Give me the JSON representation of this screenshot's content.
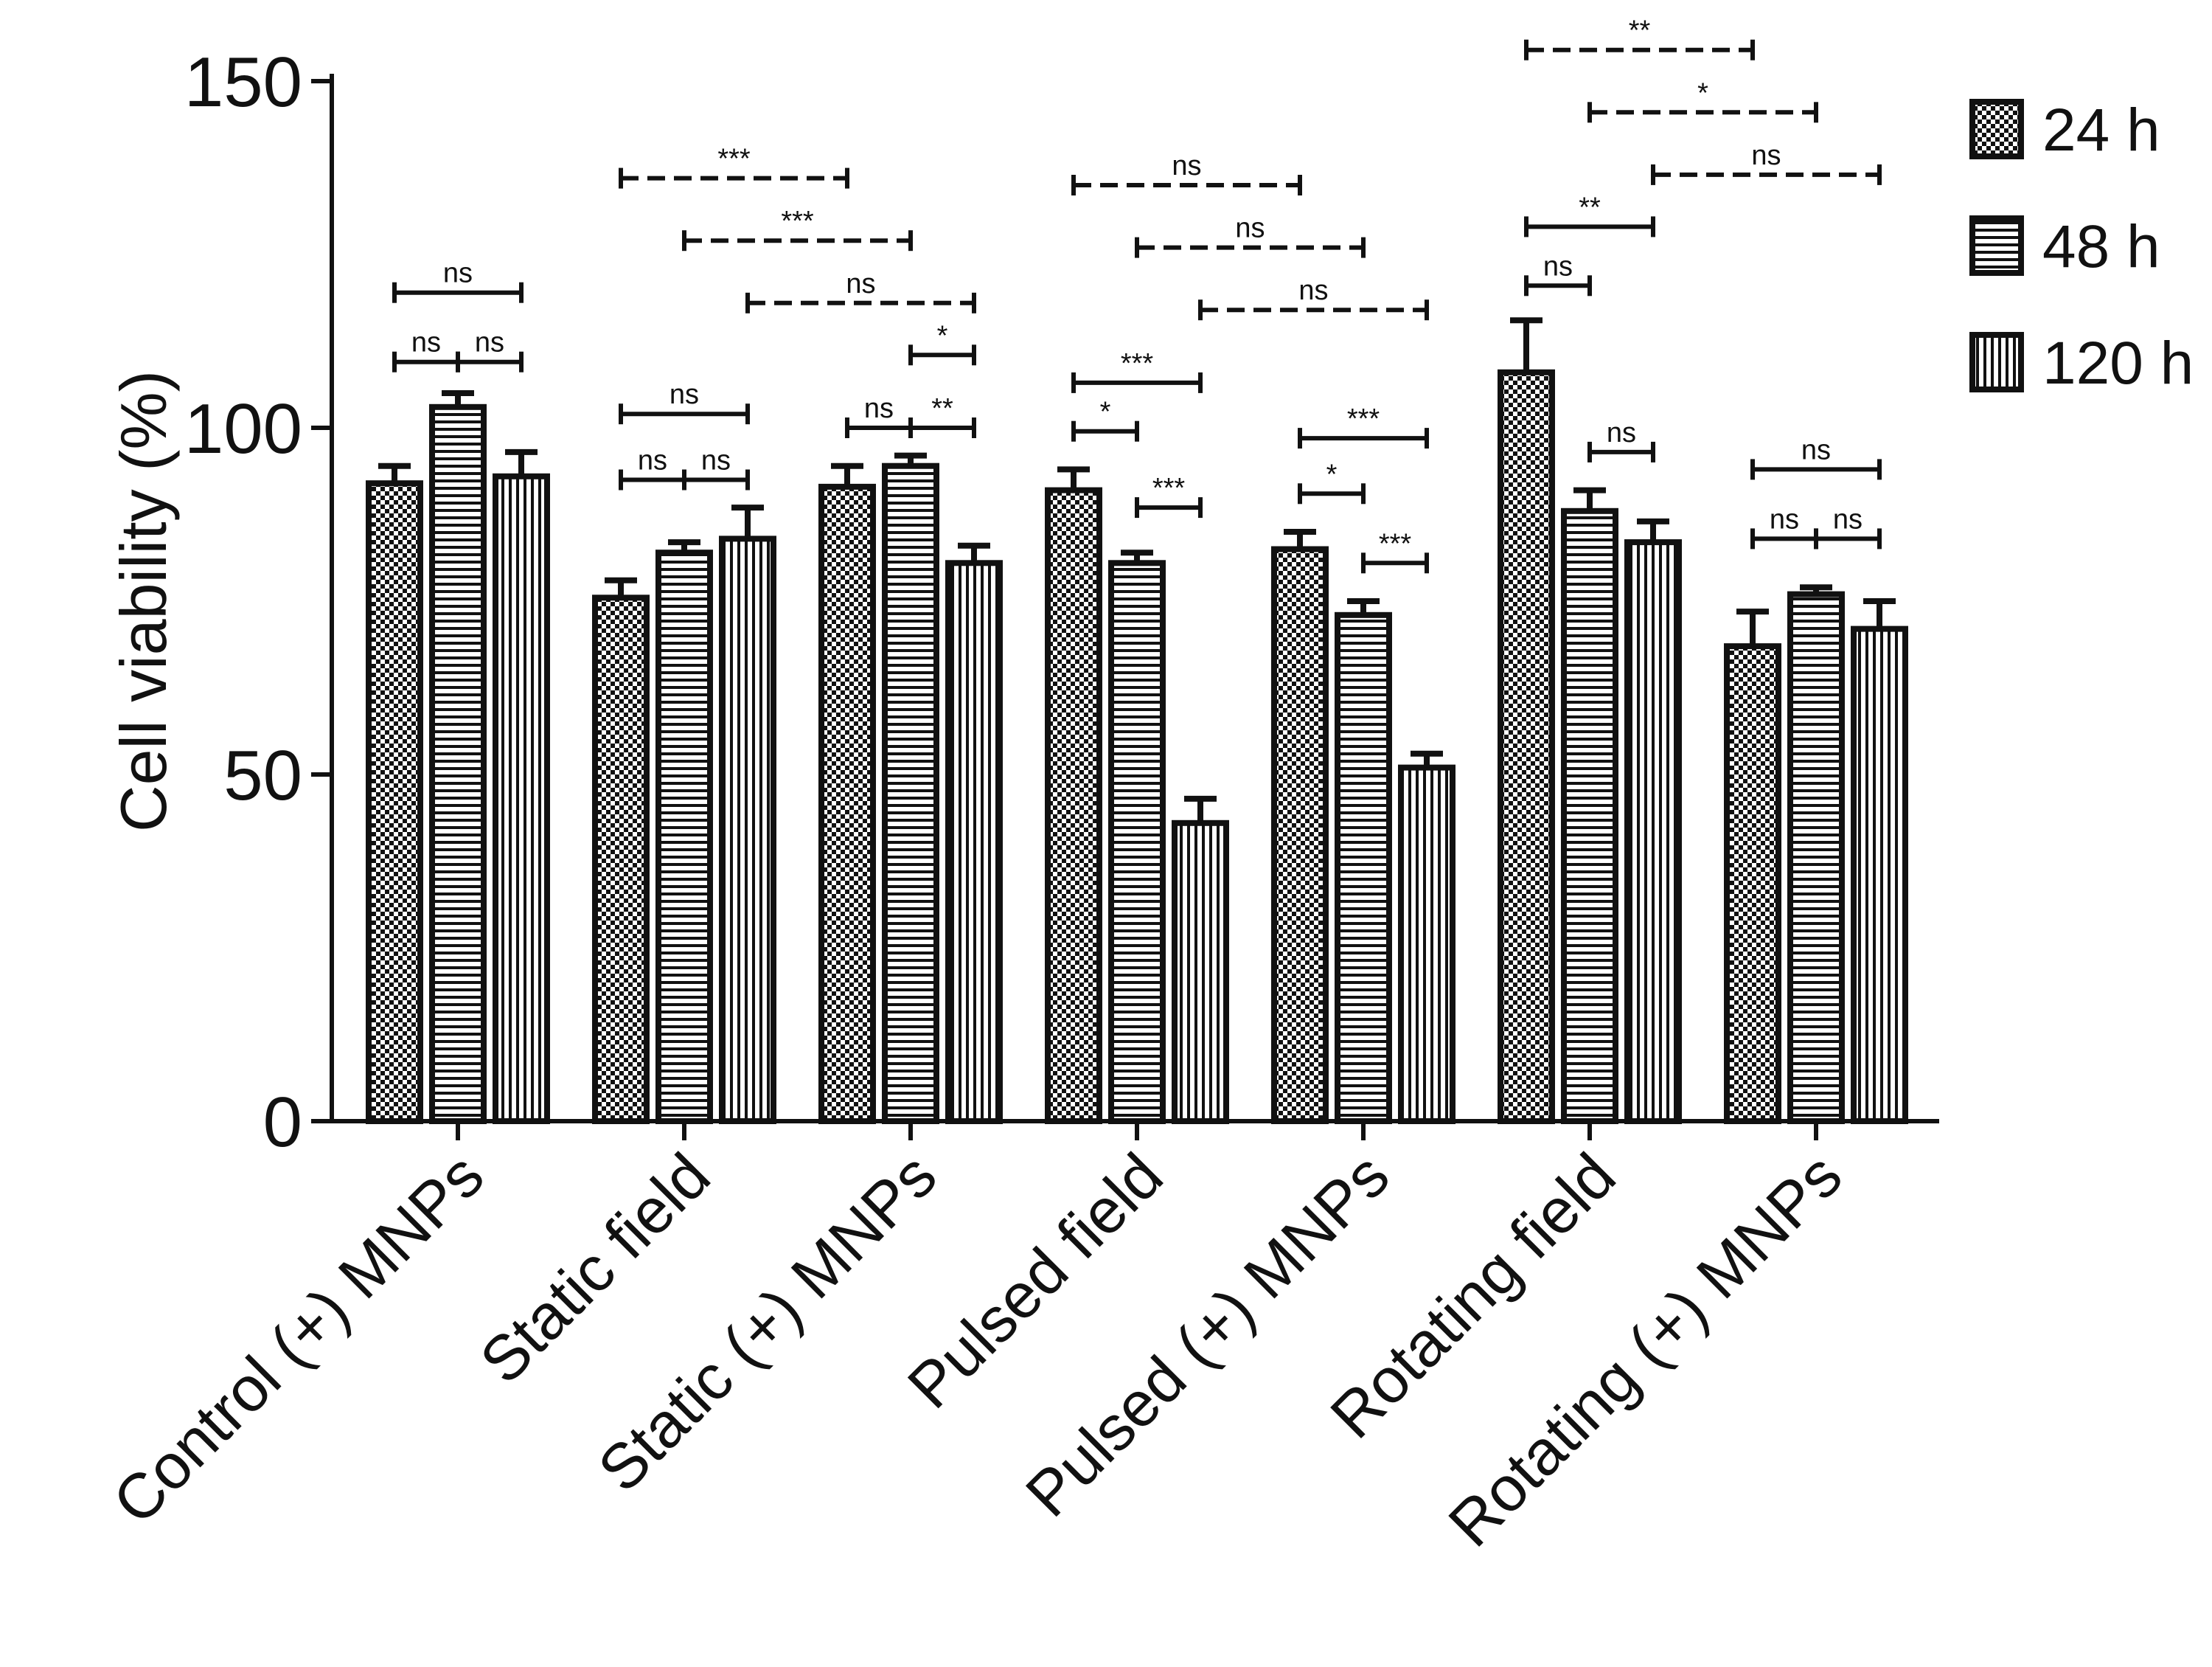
{
  "chart_data": {
    "type": "bar",
    "title": "",
    "xlabel": "",
    "ylabel": "Cell viability (%)",
    "ylim": [
      0,
      150
    ],
    "yticks": [
      0,
      50,
      100,
      150
    ],
    "grid": false,
    "legend_position": "top-right",
    "categories": [
      "Control (+) MNPs",
      "Static field",
      "Static (+) MNPs",
      "Pulsed field",
      "Pulsed (+) MNPs",
      "Rotating field",
      "Rotating (+) MNPs"
    ],
    "series": [
      {
        "name": "24 h",
        "pattern": "checker",
        "values": [
          92,
          75.5,
          91.5,
          91,
          82.5,
          108,
          68.5
        ],
        "errors": [
          2.5,
          2.5,
          3,
          3,
          2.5,
          7.5,
          5
        ]
      },
      {
        "name": "48 h",
        "pattern": "horizontal",
        "values": [
          103,
          82,
          94.5,
          80.5,
          73,
          88,
          76
        ],
        "errors": [
          2,
          1.5,
          1.5,
          1.5,
          2,
          3,
          1
        ]
      },
      {
        "name": "120 h",
        "pattern": "vertical",
        "values": [
          93,
          84,
          80.5,
          43,
          51,
          83.5,
          71
        ],
        "errors": [
          3.5,
          4.5,
          2.5,
          3.5,
          2,
          3,
          4
        ]
      }
    ],
    "annotations": [
      {
        "group": 0,
        "from": 0,
        "to": 1,
        "level": 109.5,
        "style": "solid",
        "label": "ns"
      },
      {
        "group": 0,
        "from": 1,
        "to": 2,
        "level": 109.5,
        "style": "solid",
        "label": "ns"
      },
      {
        "group": 0,
        "from": 0,
        "to": 2,
        "level": 119.5,
        "style": "solid",
        "label": "ns"
      },
      {
        "group": 1,
        "from": 0,
        "to": 1,
        "level": 92.5,
        "style": "solid",
        "label": "ns"
      },
      {
        "group": 1,
        "from": 1,
        "to": 2,
        "level": 92.5,
        "style": "solid",
        "label": "ns"
      },
      {
        "group": 1,
        "from": 0,
        "to": 2,
        "level": 102,
        "style": "solid",
        "label": "ns"
      },
      {
        "group": 2,
        "from": 0,
        "to": 1,
        "level": 100,
        "style": "solid",
        "label": "ns"
      },
      {
        "group": 2,
        "from": 1,
        "to": 2,
        "level": 100,
        "style": "solid",
        "label": "**"
      },
      {
        "group": 2,
        "from": 1,
        "to": 2,
        "level": 110.5,
        "style": "solid",
        "label": "*"
      },
      {
        "group": 3,
        "from": 0,
        "to": 1,
        "level": 99.5,
        "style": "solid",
        "label": "*"
      },
      {
        "group": 3,
        "from": 1,
        "to": 2,
        "level": 88.5,
        "style": "solid",
        "label": "***"
      },
      {
        "group": 3,
        "from": 0,
        "to": 2,
        "level": 106.5,
        "style": "solid",
        "label": "***"
      },
      {
        "group": 4,
        "from": 0,
        "to": 1,
        "level": 90.5,
        "style": "solid",
        "label": "*"
      },
      {
        "group": 4,
        "from": 1,
        "to": 2,
        "level": 80.5,
        "style": "solid",
        "label": "***"
      },
      {
        "group": 4,
        "from": 0,
        "to": 2,
        "level": 98.5,
        "style": "solid",
        "label": "***"
      },
      {
        "group": 5,
        "from": 0,
        "to": 1,
        "level": 120.5,
        "style": "solid",
        "label": "ns"
      },
      {
        "group": 5,
        "from": 1,
        "to": 2,
        "level": 96.5,
        "style": "solid",
        "label": "ns"
      },
      {
        "group": 6,
        "from": 0,
        "to": 1,
        "level": 84,
        "style": "solid",
        "label": "ns"
      },
      {
        "group": 6,
        "from": 1,
        "to": 2,
        "level": 84,
        "style": "solid",
        "label": "ns"
      },
      {
        "group": 6,
        "from": 0,
        "to": 2,
        "level": 94,
        "style": "solid",
        "label": "ns"
      },
      {
        "between": [
          [
            1,
            0
          ],
          [
            2,
            0
          ]
        ],
        "level": 136,
        "style": "dashed",
        "label": "***"
      },
      {
        "between": [
          [
            1,
            1
          ],
          [
            2,
            1
          ]
        ],
        "level": 127,
        "style": "dashed",
        "label": "***"
      },
      {
        "between": [
          [
            1,
            2
          ],
          [
            2,
            2
          ]
        ],
        "level": 118,
        "style": "dashed",
        "label": "ns"
      },
      {
        "between": [
          [
            3,
            0
          ],
          [
            4,
            0
          ]
        ],
        "level": 135,
        "style": "dashed",
        "label": "ns"
      },
      {
        "between": [
          [
            3,
            1
          ],
          [
            4,
            1
          ]
        ],
        "level": 126,
        "style": "dashed",
        "label": "ns"
      },
      {
        "between": [
          [
            3,
            2
          ],
          [
            4,
            2
          ]
        ],
        "level": 117,
        "style": "dashed",
        "label": "ns"
      },
      {
        "between": [
          [
            5,
            0
          ],
          [
            5,
            2
          ]
        ],
        "level": 129,
        "style": "solid",
        "label": "**"
      },
      {
        "between": [
          [
            5,
            0
          ],
          [
            6,
            0
          ]
        ],
        "level": 154.5,
        "style": "dashed",
        "label": "**"
      },
      {
        "between": [
          [
            5,
            1
          ],
          [
            6,
            1
          ]
        ],
        "level": 145.5,
        "style": "dashed",
        "label": "*"
      },
      {
        "between": [
          [
            5,
            2
          ],
          [
            6,
            2
          ]
        ],
        "level": 136.5,
        "style": "dashed",
        "label": "ns"
      }
    ]
  }
}
